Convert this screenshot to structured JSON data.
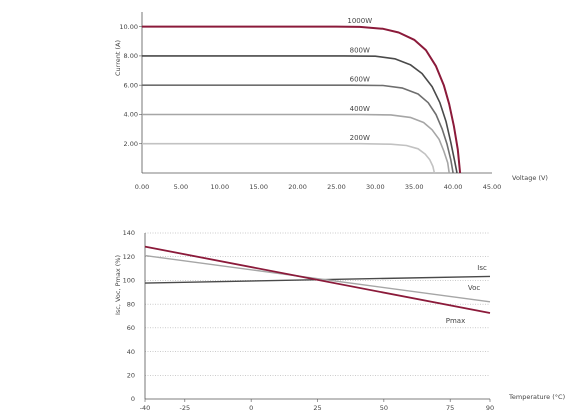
{
  "colors": {
    "maroon": "#8b1a3a",
    "dark_gray": "#4a4a4a",
    "mid_gray": "#7a7a7a",
    "light_gray": "#a6a6a6",
    "lighter_gray": "#c2c2c2",
    "grid_dotted": "#9a9a9a",
    "axis": "#555555"
  },
  "chart_data": [
    {
      "type": "line",
      "xlabel": "Voltage (V)",
      "ylabel": "Current (A)",
      "xlim": [
        0,
        45
      ],
      "ylim": [
        0,
        11
      ],
      "x_ticks": [
        "0.00",
        "5.00",
        "10.00",
        "15.00",
        "20.00",
        "25.00",
        "30.00",
        "35.00",
        "40.00",
        "45.00"
      ],
      "y_ticks": [
        "2.00",
        "4.00",
        "6.00",
        "8.00",
        "10.00"
      ],
      "grid": false,
      "series": [
        {
          "name": "1000W",
          "color": "#8b1a3a",
          "points": [
            [
              0,
              10.0
            ],
            [
              25,
              10.0
            ],
            [
              28,
              9.98
            ],
            [
              31,
              9.85
            ],
            [
              33,
              9.6
            ],
            [
              35,
              9.1
            ],
            [
              36.5,
              8.4
            ],
            [
              37.8,
              7.3
            ],
            [
              38.8,
              6.0
            ],
            [
              39.5,
              4.7
            ],
            [
              40.1,
              3.2
            ],
            [
              40.6,
              1.6
            ],
            [
              40.9,
              0
            ]
          ]
        },
        {
          "name": "800W",
          "color": "#4a4a4a",
          "points": [
            [
              0,
              8.0
            ],
            [
              26,
              8.0
            ],
            [
              30,
              7.98
            ],
            [
              32.5,
              7.8
            ],
            [
              34.5,
              7.4
            ],
            [
              36,
              6.8
            ],
            [
              37.3,
              5.9
            ],
            [
              38.3,
              4.8
            ],
            [
              39.1,
              3.5
            ],
            [
              39.7,
              2.1
            ],
            [
              40.2,
              0.8
            ],
            [
              40.5,
              0
            ]
          ]
        },
        {
          "name": "600W",
          "color": "#6e6e6e",
          "points": [
            [
              0,
              6.0
            ],
            [
              27,
              6.0
            ],
            [
              31,
              5.98
            ],
            [
              33.5,
              5.8
            ],
            [
              35.5,
              5.4
            ],
            [
              36.8,
              4.8
            ],
            [
              37.8,
              4.0
            ],
            [
              38.6,
              3.0
            ],
            [
              39.2,
              2.0
            ],
            [
              39.7,
              0.9
            ],
            [
              40.0,
              0
            ]
          ]
        },
        {
          "name": "400W",
          "color": "#a6a6a6",
          "points": [
            [
              0,
              4.0
            ],
            [
              28,
              4.0
            ],
            [
              32,
              3.97
            ],
            [
              34.5,
              3.8
            ],
            [
              36.2,
              3.45
            ],
            [
              37.3,
              2.95
            ],
            [
              38.2,
              2.3
            ],
            [
              38.8,
              1.5
            ],
            [
              39.3,
              0.7
            ],
            [
              39.5,
              0
            ]
          ]
        },
        {
          "name": "200W",
          "color": "#c2c2c2",
          "points": [
            [
              0,
              2.0
            ],
            [
              28,
              2.0
            ],
            [
              32,
              1.97
            ],
            [
              34,
              1.88
            ],
            [
              35.5,
              1.65
            ],
            [
              36.4,
              1.3
            ],
            [
              37.0,
              0.9
            ],
            [
              37.4,
              0.45
            ],
            [
              37.6,
              0
            ]
          ]
        }
      ],
      "label_positions_data": [
        [
          28.0,
          10.25
        ],
        [
          28.0,
          8.25
        ],
        [
          28.0,
          6.25
        ],
        [
          28.0,
          4.25
        ],
        [
          28.0,
          2.25
        ]
      ]
    },
    {
      "type": "line",
      "xlabel": "Temperature (°C)",
      "ylabel": "Isc, Voc, Pmax (%)",
      "xlim": [
        -40,
        90
      ],
      "ylim": [
        0,
        140
      ],
      "x_ticks": [
        "-40",
        "-25",
        "0",
        "25",
        "50",
        "75",
        "90"
      ],
      "x_tick_values": [
        -40,
        -25,
        0,
        25,
        50,
        75,
        90
      ],
      "y_ticks": [
        "0",
        "20",
        "40",
        "60",
        "80",
        "100",
        "120",
        "140"
      ],
      "grid": true,
      "series": [
        {
          "name": "Isc",
          "color": "#4a4a4a",
          "points": [
            [
              -40,
              97.8
            ],
            [
              90,
              103.4
            ]
          ]
        },
        {
          "name": "Voc",
          "color": "#a6a6a6",
          "points": [
            [
              -40,
              121
            ],
            [
              90,
              82
            ]
          ]
        },
        {
          "name": "Pmax",
          "color": "#8b1a3a",
          "points": [
            [
              -40,
              128.5
            ],
            [
              90,
              72.5
            ]
          ]
        }
      ]
    }
  ]
}
